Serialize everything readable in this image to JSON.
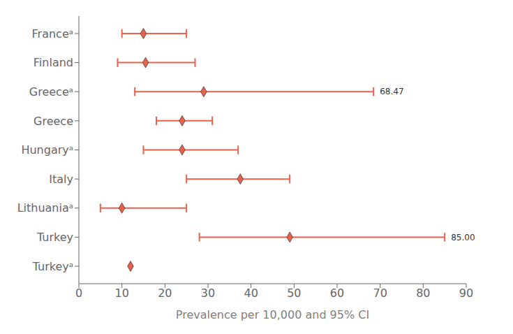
{
  "chart_data": {
    "type": "scatter",
    "categories": [
      "Franceᵃ",
      "Finland",
      "Greeceᵃ",
      "Greece",
      "Hungaryᵃ",
      "Italy",
      "Lithuaniaᵃ",
      "Turkey",
      "Turkeyᵃ"
    ],
    "values": [
      15.0,
      15.5,
      29.0,
      24.0,
      24.0,
      37.5,
      10.0,
      49.0,
      12.0
    ],
    "ci_low": [
      10.0,
      9.0,
      13.0,
      18.0,
      15.0,
      25.0,
      5.0,
      28.0,
      null
    ],
    "ci_high": [
      25.0,
      27.0,
      68.47,
      31.0,
      37.0,
      49.0,
      25.0,
      85.0,
      null
    ],
    "annotations": [
      null,
      null,
      "68.47",
      null,
      null,
      null,
      null,
      "85.00",
      null
    ],
    "color": "#E8614D",
    "marker": "diamond",
    "xlabel": "Prevalence per 10,000 and 95% CI",
    "xlim": [
      0,
      90
    ],
    "xticks": [
      0,
      10,
      20,
      30,
      40,
      50,
      60,
      70,
      80,
      90
    ],
    "grid": false
  }
}
